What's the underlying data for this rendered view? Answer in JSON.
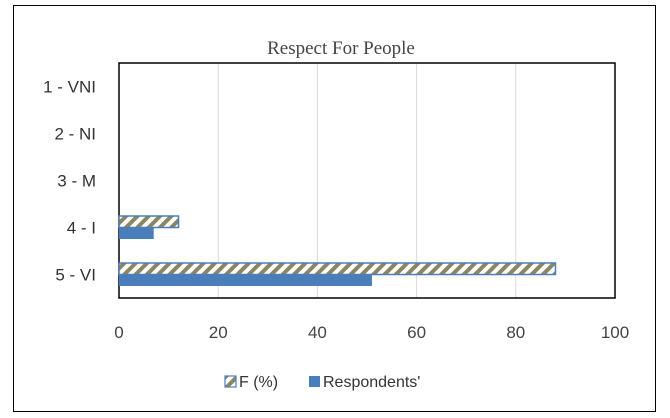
{
  "chart_data": {
    "type": "bar",
    "orientation": "horizontal",
    "title": "Respect For People",
    "categories": [
      "1 - VNI",
      "2 - NI",
      "3 - M",
      "4 - I",
      "5 - VI"
    ],
    "series": [
      {
        "name": "F (%)",
        "values": [
          0,
          0,
          0,
          12,
          88
        ],
        "color": "#4a7ebb",
        "pattern": "diagonal-hatch",
        "pattern_color": "#8b8660"
      },
      {
        "name": "Respondents'",
        "values": [
          0,
          0,
          0,
          7,
          51
        ],
        "color": "#4a7ebb",
        "pattern": "solid"
      }
    ],
    "xlim": [
      0,
      100
    ],
    "xticks": [
      0,
      20,
      40,
      60,
      80,
      100
    ],
    "grid": "vertical",
    "legend": "bottom"
  }
}
